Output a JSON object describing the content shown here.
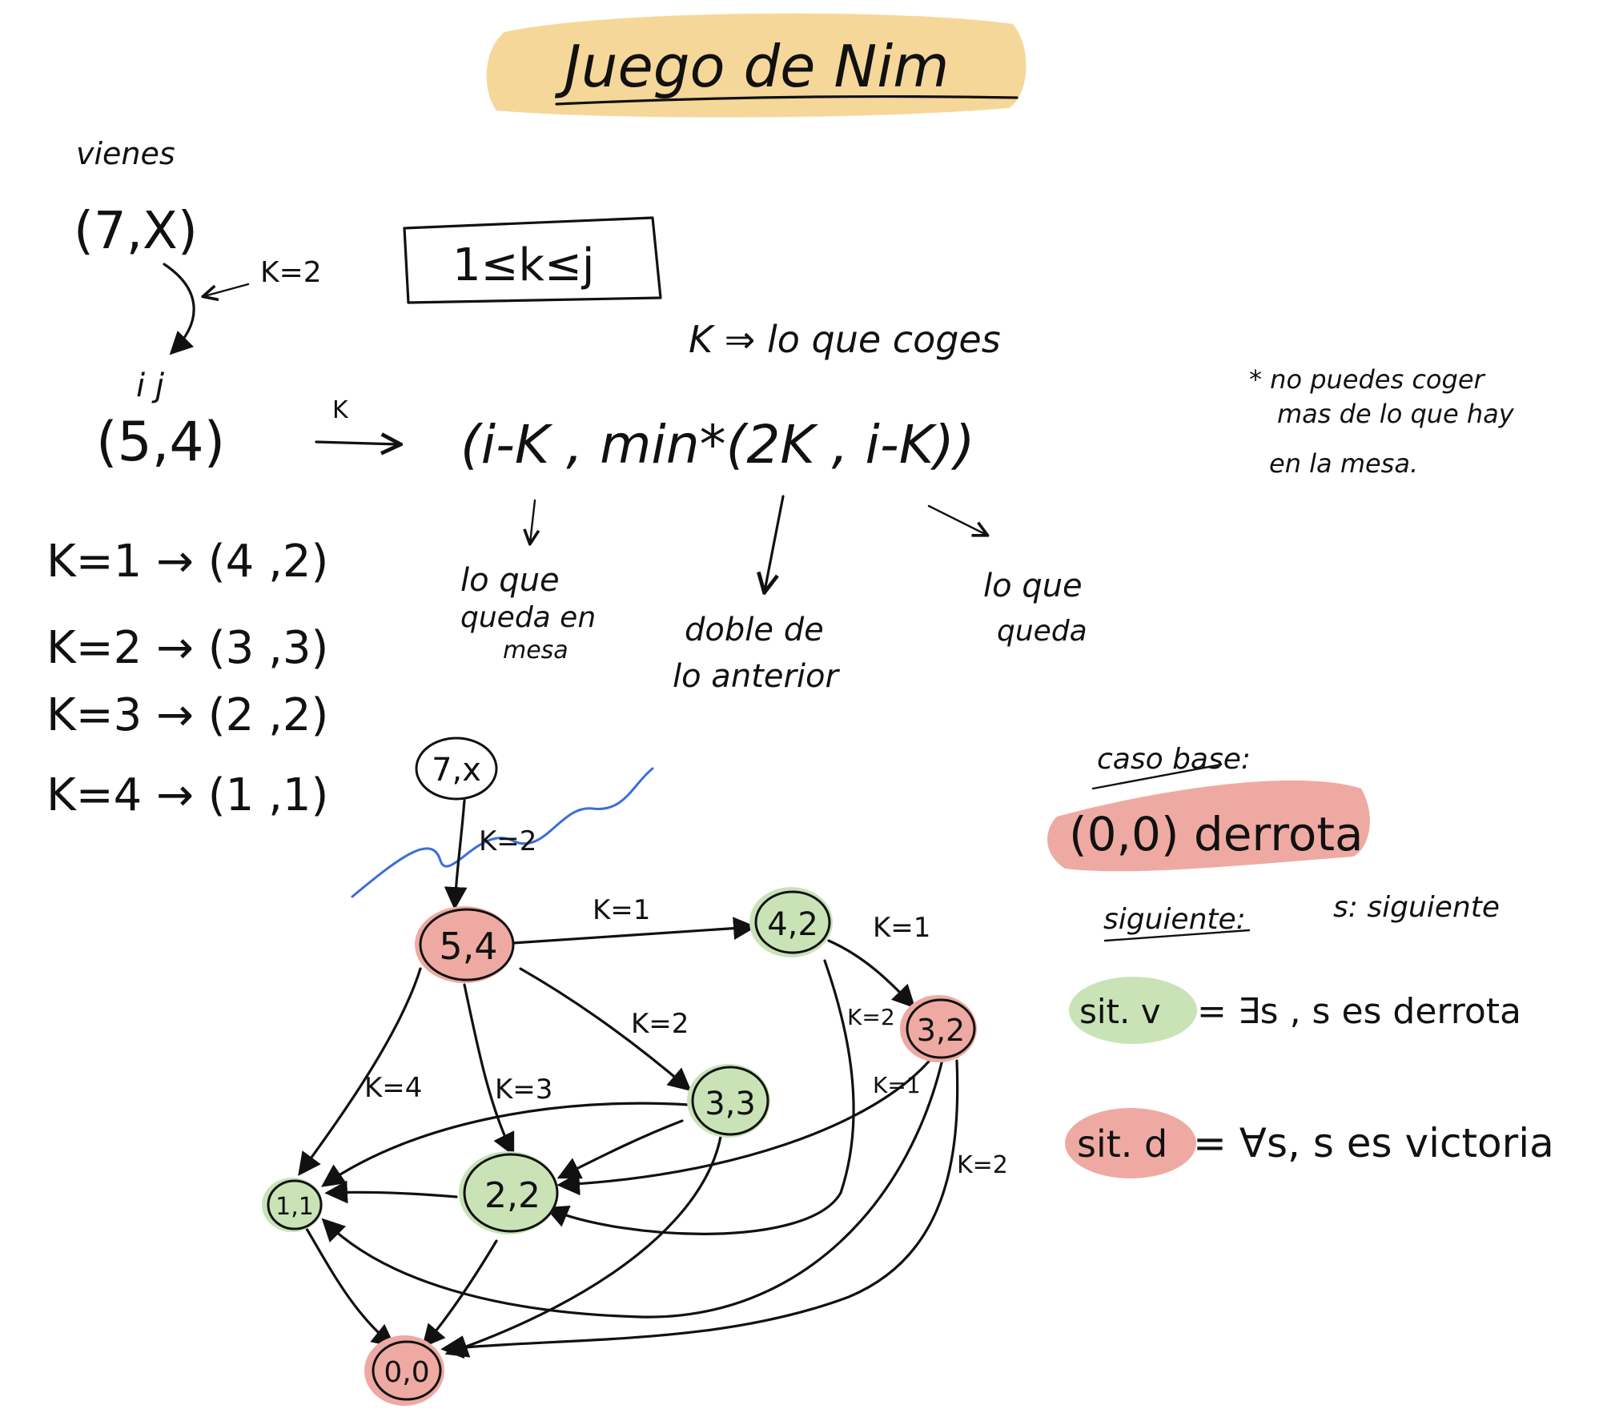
{
  "title": "Juego de Nim",
  "colors": {
    "title_highlight": "#f6d79a",
    "win_green": "#c9e3b7",
    "lose_red": "#eeaaa2",
    "white": "#ffffff",
    "ink": "#111111",
    "scribble_blue": "#3b6fd6"
  },
  "header": {
    "vienes_label": "vienes",
    "start_state": "(7,X)",
    "k_label": "K=2",
    "constraint": "1≤k≤j",
    "k_def": "K ⇒ lo que coges",
    "ij_labels": "i   j",
    "current_state": "(5,4)",
    "transition_k": "K",
    "transition_formula": "(i-K , min*(2K , i-K))"
  },
  "note_star": {
    "line1": "* no puedes coger",
    "line2": "mas de lo que hay",
    "line3": "en la mesa."
  },
  "explanations": {
    "left": [
      "lo que",
      "queda en",
      "mesa"
    ],
    "middle": [
      "doble de",
      "lo anterior"
    ],
    "right": [
      "lo que",
      "queda"
    ]
  },
  "k_list": [
    "K=1 → (4 ,2)",
    "K=2 → (3 ,3)",
    "K=3 → (2 ,2)",
    "K=4 → (1 ,1)"
  ],
  "graph": {
    "nodes": [
      {
        "id": "n7x",
        "label": "7,x",
        "status": "start"
      },
      {
        "id": "n54",
        "label": "5,4",
        "status": "lose"
      },
      {
        "id": "n42",
        "label": "4,2",
        "status": "win"
      },
      {
        "id": "n32",
        "label": "3,2",
        "status": "lose"
      },
      {
        "id": "n33",
        "label": "3,3",
        "status": "win"
      },
      {
        "id": "n22",
        "label": "2,2",
        "status": "win"
      },
      {
        "id": "n11",
        "label": "1,1",
        "status": "win"
      },
      {
        "id": "n00",
        "label": "0,0",
        "status": "lose"
      }
    ],
    "edge_labels": {
      "e_7x_54": "K=2",
      "e_54_42": "K=1",
      "e_54_33": "K=2",
      "e_54_22": "K=3",
      "e_54_11": "K=4",
      "e_42_32": "K=1",
      "e_42_22": "K=2",
      "e_32_22": "K=1",
      "e_32_11": "K=2"
    }
  },
  "legend": {
    "caso_base_label": "caso base:",
    "base_case": "(0,0) derrota",
    "siguiente_label": "siguiente:",
    "s_def": "s: siguiente",
    "sit_v_label": "sit. v",
    "sit_v_def": "= ∃s , s es derrota",
    "sit_d_label": "sit. d",
    "sit_d_def": "= ∀s, s es victoria"
  }
}
